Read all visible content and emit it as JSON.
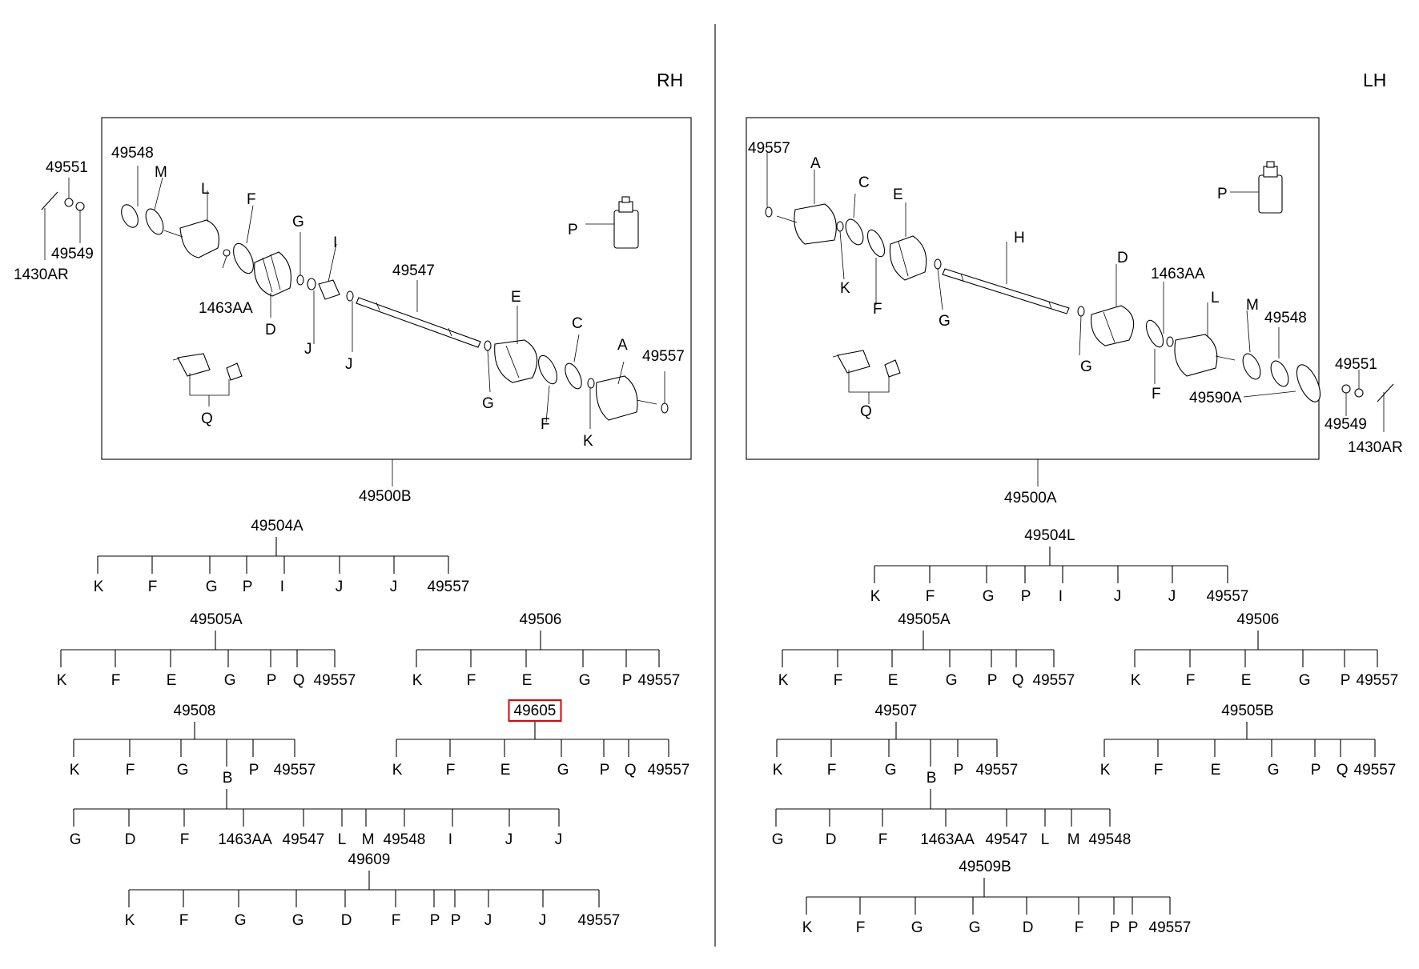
{
  "sides": {
    "rh": "RH",
    "lh": "LH"
  },
  "rh_callouts": [
    "49548",
    "M",
    "L",
    "F",
    "G",
    "I",
    "49547",
    "E",
    "C",
    "A",
    "49557",
    "P",
    "1463AA",
    "D",
    "J",
    "J",
    "G",
    "F",
    "K",
    "Q",
    "49551",
    "49549",
    "1430AR"
  ],
  "lh_callouts": [
    "49557",
    "A",
    "C",
    "E",
    "H",
    "D",
    "1463AA",
    "L",
    "M",
    "49548",
    "K",
    "F",
    "G",
    "G",
    "F",
    "49590A",
    "P",
    "Q",
    "49551",
    "49549",
    "1430AR"
  ],
  "assemblies": {
    "rh": "49500B",
    "lh": "49500A"
  },
  "kits": [
    {
      "code": "49504A",
      "parts": [
        "K",
        "F",
        "G",
        "P",
        "I",
        "J",
        "J",
        "49557"
      ]
    },
    {
      "code": "49505A",
      "parts": [
        "K",
        "F",
        "E",
        "G",
        "P",
        "Q",
        "49557"
      ]
    },
    {
      "code": "49506",
      "parts": [
        "K",
        "F",
        "E",
        "G",
        "P",
        "49557"
      ]
    },
    {
      "code": "49508",
      "parts": [
        "K",
        "F",
        "G",
        "P",
        "49557"
      ],
      "sub": "B",
      "sub_parts": [
        "G",
        "D",
        "F",
        "1463AA",
        "49547",
        "L",
        "M",
        "49548",
        "I",
        "J",
        "J"
      ]
    },
    {
      "code": "49605",
      "parts": [
        "K",
        "F",
        "E",
        "G",
        "P",
        "Q",
        "49557"
      ],
      "highlighted": true
    },
    {
      "code": "49609",
      "parts": [
        "K",
        "F",
        "G",
        "G",
        "D",
        "F",
        "P",
        "P",
        "J",
        "J",
        "49557"
      ]
    },
    {
      "code": "49504L",
      "parts": [
        "K",
        "F",
        "G",
        "P",
        "I",
        "J",
        "J",
        "49557"
      ]
    },
    {
      "code": "49505A",
      "parts": [
        "K",
        "F",
        "E",
        "G",
        "P",
        "Q",
        "49557"
      ]
    },
    {
      "code": "49506",
      "parts": [
        "K",
        "F",
        "E",
        "G",
        "P",
        "49557"
      ]
    },
    {
      "code": "49507",
      "parts": [
        "K",
        "F",
        "G",
        "P",
        "49557"
      ],
      "sub": "B",
      "sub_parts": [
        "G",
        "D",
        "F",
        "1463AA",
        "49547",
        "L",
        "M",
        "49548"
      ]
    },
    {
      "code": "49505B",
      "parts": [
        "K",
        "F",
        "E",
        "G",
        "P",
        "Q",
        "49557"
      ]
    },
    {
      "code": "49509B",
      "parts": [
        "K",
        "F",
        "G",
        "G",
        "D",
        "F",
        "P",
        "P",
        "49557"
      ]
    }
  ],
  "highlight_color": "#e00000"
}
